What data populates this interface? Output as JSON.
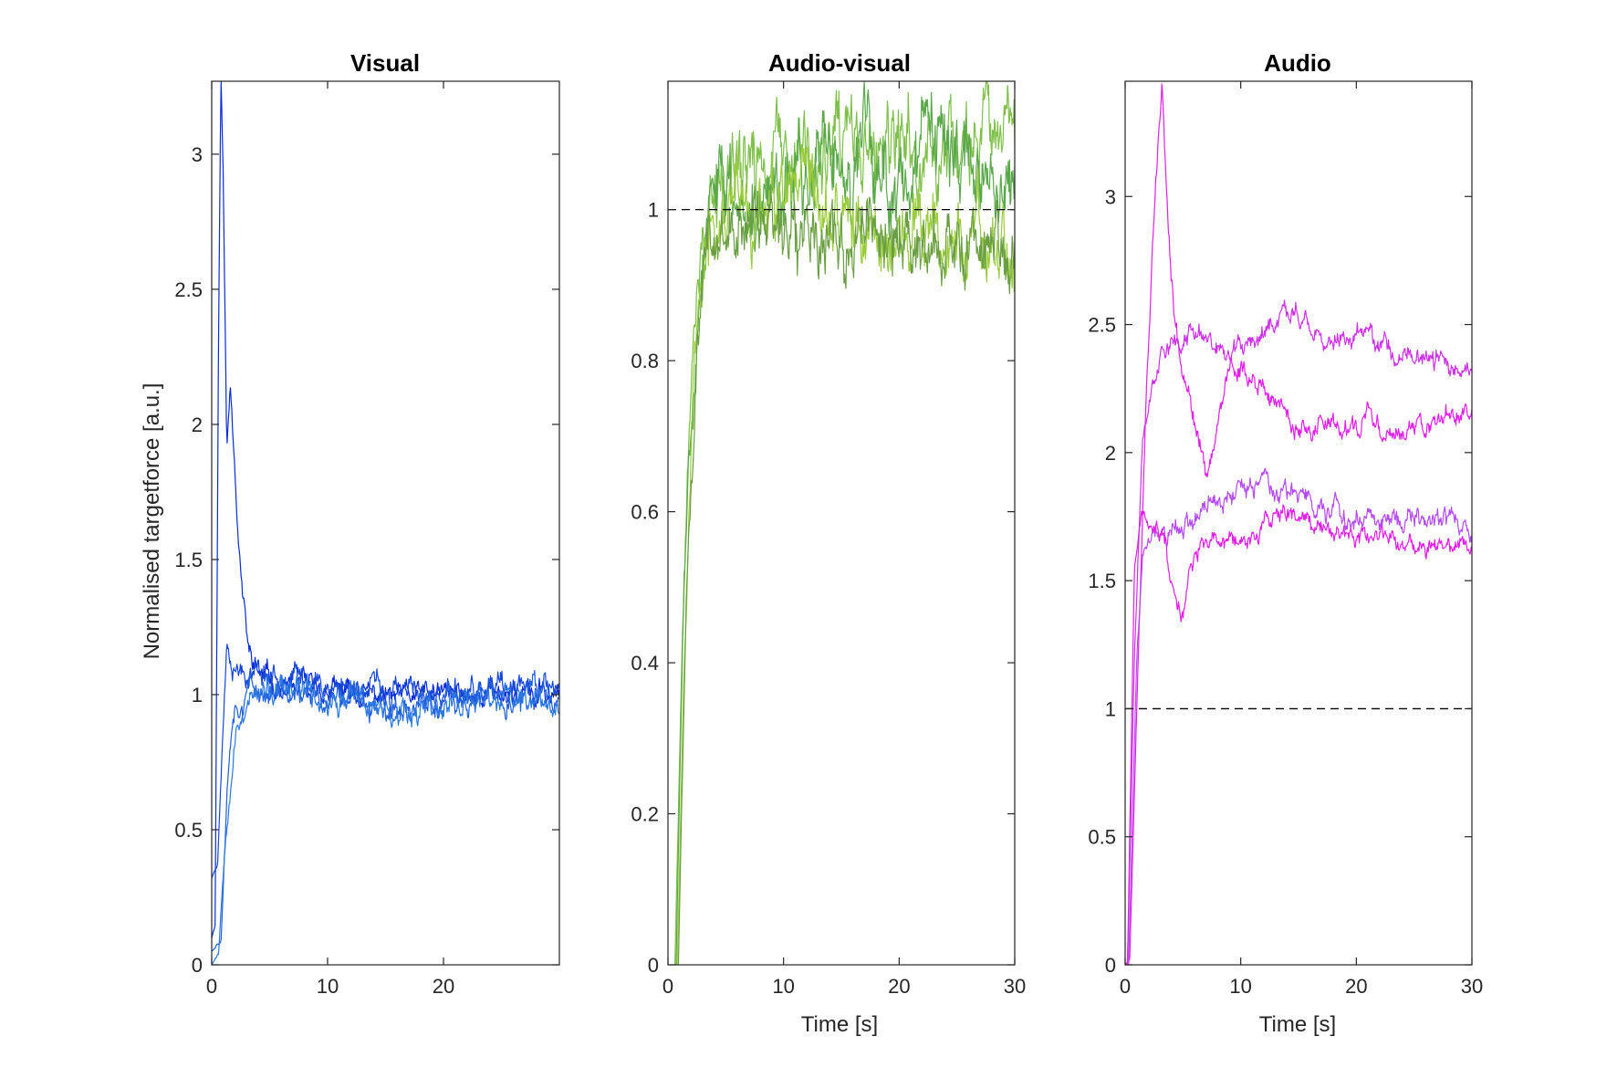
{
  "chart_data": [
    {
      "type": "line",
      "title": "Visual",
      "xlabel": "",
      "ylabel": "Normalised targetforce [a.u.]",
      "xlim": [
        0,
        30
      ],
      "ylim": [
        0,
        3.27
      ],
      "xticks": [
        0,
        10,
        20
      ],
      "yticks": [
        0,
        0.5,
        1,
        1.5,
        2,
        2.5,
        3
      ],
      "xtick_labels": [
        "0",
        "10",
        "20"
      ],
      "ytick_labels": [
        "0",
        "0.5",
        "1",
        "1.5",
        "2",
        "2.5",
        "3"
      ],
      "grid": false,
      "reference_line": null,
      "series": [
        {
          "color": "#0a2bd6",
          "points": [
            [
              0,
              0.1
            ],
            [
              0.3,
              0.15
            ],
            [
              0.6,
              2.4
            ],
            [
              0.8,
              3.3
            ],
            [
              1.0,
              2.9
            ],
            [
              1.3,
              1.9
            ],
            [
              1.6,
              2.15
            ],
            [
              1.9,
              1.95
            ],
            [
              2.3,
              1.6
            ],
            [
              2.7,
              1.35
            ],
            [
              3.2,
              1.15
            ],
            [
              4,
              1.08
            ],
            [
              5,
              1.05
            ],
            [
              6,
              1.03
            ],
            [
              8,
              1.02
            ],
            [
              12,
              1.0
            ],
            [
              16,
              0.99
            ],
            [
              20,
              1.0
            ],
            [
              25,
              1.01
            ],
            [
              30,
              1.0
            ]
          ],
          "noise": 0.03,
          "seed": 11
        },
        {
          "color": "#1546d8",
          "points": [
            [
              0,
              0.32
            ],
            [
              0.5,
              0.38
            ],
            [
              1.0,
              0.9
            ],
            [
              1.3,
              1.2
            ],
            [
              1.8,
              1.12
            ],
            [
              3,
              1.1
            ],
            [
              5,
              1.08
            ],
            [
              8,
              1.05
            ],
            [
              12,
              1.03
            ],
            [
              16,
              1.0
            ],
            [
              20,
              0.99
            ],
            [
              25,
              1.0
            ],
            [
              30,
              1.02
            ]
          ],
          "noise": 0.035,
          "seed": 23
        },
        {
          "color": "#1f5fdc",
          "points": [
            [
              0,
              0.05
            ],
            [
              0.8,
              0.1
            ],
            [
              1.3,
              0.65
            ],
            [
              1.8,
              0.95
            ],
            [
              2.5,
              1.0
            ],
            [
              4,
              1.02
            ],
            [
              6,
              1.0
            ],
            [
              10,
              0.98
            ],
            [
              15,
              0.97
            ],
            [
              20,
              0.96
            ],
            [
              25,
              0.99
            ],
            [
              30,
              1.0
            ]
          ],
          "noise": 0.035,
          "seed": 37
        },
        {
          "color": "#2a78e2",
          "points": [
            [
              0,
              0.0
            ],
            [
              0.6,
              0.05
            ],
            [
              1.2,
              0.5
            ],
            [
              2.0,
              0.85
            ],
            [
              3,
              0.98
            ],
            [
              5,
              1.0
            ],
            [
              8,
              1.0
            ],
            [
              12,
              0.97
            ],
            [
              16,
              0.95
            ],
            [
              20,
              0.96
            ],
            [
              25,
              0.98
            ],
            [
              30,
              0.99
            ]
          ],
          "noise": 0.035,
          "seed": 53
        }
      ]
    },
    {
      "type": "line",
      "title": "Audio-visual",
      "xlabel": "Time [s]",
      "ylabel": "",
      "xlim": [
        0,
        30
      ],
      "ylim": [
        0,
        1.17
      ],
      "xticks": [
        0,
        10,
        20,
        30
      ],
      "yticks": [
        0,
        0.2,
        0.4,
        0.6,
        0.8,
        1
      ],
      "xtick_labels": [
        "0",
        "10",
        "20",
        "30"
      ],
      "ytick_labels": [
        "0",
        "0.2",
        "0.4",
        "0.6",
        "0.8",
        "1"
      ],
      "grid": false,
      "reference_line": 1,
      "series": [
        {
          "color": "#7fbf4a",
          "points": [
            [
              0.6,
              0
            ],
            [
              1.2,
              0.4
            ],
            [
              1.8,
              0.7
            ],
            [
              2.5,
              0.9
            ],
            [
              3.5,
              1.0
            ],
            [
              5,
              1.04
            ],
            [
              8,
              1.06
            ],
            [
              12,
              1.06
            ],
            [
              16,
              1.07
            ],
            [
              20,
              1.06
            ],
            [
              24,
              1.08
            ],
            [
              28,
              1.09
            ],
            [
              30,
              1.05
            ]
          ],
          "noise": 0.04,
          "seed": 71
        },
        {
          "color": "#5aa84a",
          "points": [
            [
              0.7,
              0
            ],
            [
              1.3,
              0.45
            ],
            [
              2,
              0.75
            ],
            [
              3,
              0.93
            ],
            [
              4,
              1.0
            ],
            [
              6,
              1.02
            ],
            [
              10,
              1.04
            ],
            [
              15,
              1.06
            ],
            [
              20,
              1.05
            ],
            [
              25,
              1.06
            ],
            [
              30,
              1.04
            ]
          ],
          "noise": 0.04,
          "seed": 83
        },
        {
          "color": "#9acc3c",
          "points": [
            [
              0.8,
              0
            ],
            [
              1.4,
              0.4
            ],
            [
              2.2,
              0.78
            ],
            [
              3,
              0.92
            ],
            [
              4,
              0.96
            ],
            [
              6,
              0.98
            ],
            [
              10,
              0.99
            ],
            [
              15,
              0.98
            ],
            [
              20,
              0.96
            ],
            [
              25,
              0.95
            ],
            [
              30,
              0.94
            ]
          ],
          "noise": 0.035,
          "seed": 97
        },
        {
          "color": "#6a9e42",
          "points": [
            [
              0.9,
              0
            ],
            [
              1.6,
              0.5
            ],
            [
              2.5,
              0.82
            ],
            [
              3.5,
              0.95
            ],
            [
              5,
              0.98
            ],
            [
              8,
              0.99
            ],
            [
              12,
              0.98
            ],
            [
              16,
              0.97
            ],
            [
              20,
              0.96
            ],
            [
              25,
              0.95
            ],
            [
              30,
              0.95
            ]
          ],
          "noise": 0.035,
          "seed": 101
        }
      ]
    },
    {
      "type": "line",
      "title": "Audio",
      "xlabel": "Time [s]",
      "ylabel": "",
      "xlim": [
        0,
        30
      ],
      "ylim": [
        0,
        3.45
      ],
      "xticks": [
        0,
        10,
        20,
        30
      ],
      "yticks": [
        0,
        0.5,
        1,
        1.5,
        2,
        2.5,
        3
      ],
      "xtick_labels": [
        "0",
        "10",
        "20",
        "30"
      ],
      "ytick_labels": [
        "0",
        "0.5",
        "1",
        "1.5",
        "2",
        "2.5",
        "3"
      ],
      "grid": false,
      "reference_line": 1,
      "series": [
        {
          "color": "#e020e8",
          "points": [
            [
              0,
              0
            ],
            [
              0.4,
              0.02
            ],
            [
              1,
              1.0
            ],
            [
              1.8,
              2.2
            ],
            [
              2.5,
              2.9
            ],
            [
              3.2,
              3.45
            ],
            [
              3.7,
              2.9
            ],
            [
              4.2,
              2.55
            ],
            [
              5,
              2.3
            ],
            [
              6,
              2.1
            ],
            [
              7,
              1.95
            ],
            [
              8,
              2.1
            ],
            [
              9,
              2.3
            ],
            [
              10,
              2.35
            ],
            [
              11,
              2.28
            ],
            [
              12,
              2.25
            ],
            [
              13,
              2.2
            ],
            [
              14,
              2.15
            ],
            [
              15,
              2.1
            ],
            [
              17,
              2.12
            ],
            [
              19,
              2.08
            ],
            [
              21,
              2.15
            ],
            [
              23,
              2.08
            ],
            [
              25,
              2.1
            ],
            [
              27,
              2.12
            ],
            [
              29,
              2.15
            ],
            [
              30,
              2.2
            ]
          ],
          "noise": 0.03,
          "seed": 131
        },
        {
          "color": "#cc33e6",
          "points": [
            [
              0.2,
              0
            ],
            [
              0.8,
              1.2
            ],
            [
              1.5,
              2.05
            ],
            [
              2.5,
              2.3
            ],
            [
              3.5,
              2.42
            ],
            [
              5,
              2.45
            ],
            [
              7,
              2.47
            ],
            [
              9,
              2.4
            ],
            [
              11,
              2.42
            ],
            [
              13,
              2.5
            ],
            [
              15,
              2.5
            ],
            [
              17,
              2.45
            ],
            [
              19,
              2.42
            ],
            [
              21,
              2.48
            ],
            [
              23,
              2.4
            ],
            [
              25,
              2.38
            ],
            [
              27,
              2.36
            ],
            [
              29,
              2.33
            ],
            [
              30,
              2.35
            ]
          ],
          "noise": 0.03,
          "seed": 149
        },
        {
          "color": "#b44bf0",
          "points": [
            [
              0.3,
              0
            ],
            [
              1,
              1.2
            ],
            [
              1.5,
              1.6
            ],
            [
              2.5,
              1.68
            ],
            [
              4,
              1.72
            ],
            [
              6,
              1.75
            ],
            [
              8,
              1.82
            ],
            [
              10,
              1.85
            ],
            [
              12,
              1.86
            ],
            [
              14,
              1.84
            ],
            [
              16,
              1.8
            ],
            [
              18,
              1.75
            ],
            [
              20,
              1.73
            ],
            [
              22,
              1.74
            ],
            [
              24,
              1.74
            ],
            [
              26,
              1.73
            ],
            [
              28,
              1.72
            ],
            [
              30,
              1.72
            ]
          ],
          "noise": 0.03,
          "seed": 163
        },
        {
          "color": "#e01ee8",
          "points": [
            [
              0.2,
              0
            ],
            [
              0.8,
              1.55
            ],
            [
              1.4,
              1.75
            ],
            [
              2.5,
              1.72
            ],
            [
              3.5,
              1.65
            ],
            [
              4.5,
              1.4
            ],
            [
              5,
              1.35
            ],
            [
              5.5,
              1.52
            ],
            [
              6.5,
              1.65
            ],
            [
              8,
              1.68
            ],
            [
              10,
              1.66
            ],
            [
              12,
              1.72
            ],
            [
              14,
              1.77
            ],
            [
              16,
              1.73
            ],
            [
              18,
              1.7
            ],
            [
              20,
              1.66
            ],
            [
              22,
              1.65
            ],
            [
              24,
              1.63
            ],
            [
              26,
              1.62
            ],
            [
              28,
              1.65
            ],
            [
              30,
              1.66
            ]
          ],
          "noise": 0.025,
          "seed": 181
        }
      ]
    }
  ]
}
